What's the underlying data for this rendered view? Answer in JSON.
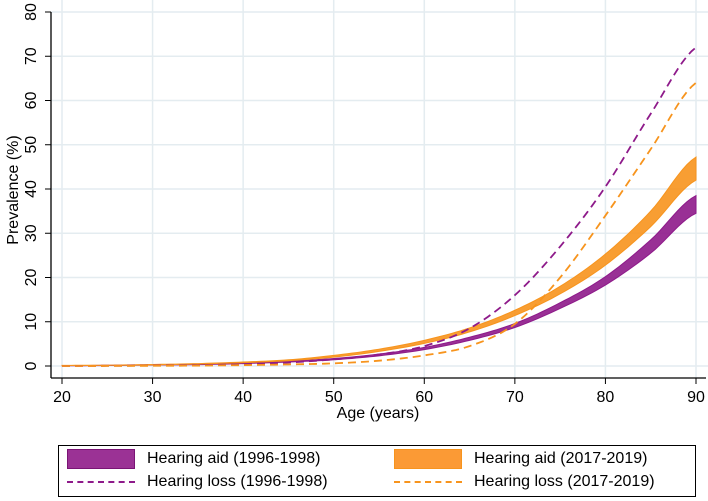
{
  "chart_data": {
    "type": "area",
    "title": "",
    "xlabel": "Age (years)",
    "ylabel": "Prevalence (%)",
    "xlim": [
      20,
      90
    ],
    "ylim": [
      0,
      80
    ],
    "xticks": [
      "20",
      "30",
      "40",
      "50",
      "60",
      "70",
      "80",
      "90"
    ],
    "yticks": [
      "0",
      "10",
      "20",
      "30",
      "40",
      "50",
      "60",
      "70",
      "80"
    ],
    "grid": true,
    "legend_position": "bottom",
    "x": [
      20,
      25,
      30,
      35,
      40,
      45,
      50,
      55,
      60,
      65,
      70,
      75,
      80,
      85,
      90
    ],
    "series": [
      {
        "name": "Hearing aid (1996-1998)",
        "style": "band",
        "color": "#8e1a8a",
        "lower": [
          0.05,
          0.1,
          0.2,
          0.3,
          0.55,
          0.9,
          1.4,
          2.3,
          3.7,
          5.8,
          8.7,
          13,
          18.3,
          25.5,
          34.5
        ],
        "upper": [
          0.1,
          0.15,
          0.25,
          0.4,
          0.7,
          1.1,
          1.7,
          2.7,
          4.2,
          6.5,
          9.6,
          14.3,
          20.2,
          28.5,
          38.5
        ]
      },
      {
        "name": "Hearing aid (2017-2019)",
        "style": "band",
        "color": "#f7941d",
        "lower": [
          0.1,
          0.15,
          0.25,
          0.45,
          0.75,
          1.2,
          2.0,
          3.3,
          5.1,
          7.7,
          11.4,
          16.3,
          22.8,
          31.5,
          42
        ],
        "upper": [
          0.15,
          0.2,
          0.35,
          0.55,
          0.9,
          1.4,
          2.4,
          3.8,
          5.8,
          8.6,
          12.6,
          18,
          25.3,
          35,
          47.2
        ]
      },
      {
        "name": "Hearing loss (1996-1998)",
        "style": "dashed",
        "color": "#8e1a8a",
        "values": [
          0,
          0.05,
          0.1,
          0.2,
          0.4,
          0.8,
          1.5,
          2.6,
          4.5,
          8.5,
          16,
          27,
          40.5,
          57,
          72
        ]
      },
      {
        "name": "Hearing loss (2017-2019)",
        "style": "dashed",
        "color": "#f7941d",
        "values": [
          0,
          0.02,
          0.05,
          0.1,
          0.2,
          0.35,
          0.6,
          1.2,
          2.4,
          4.5,
          9.5,
          20,
          34,
          49,
          64
        ]
      }
    ]
  },
  "legend": [
    "Hearing aid (1996-1998)",
    "Hearing aid (2017-2019)",
    "Hearing loss (1996-1998)",
    "Hearing loss (2017-2019)"
  ]
}
